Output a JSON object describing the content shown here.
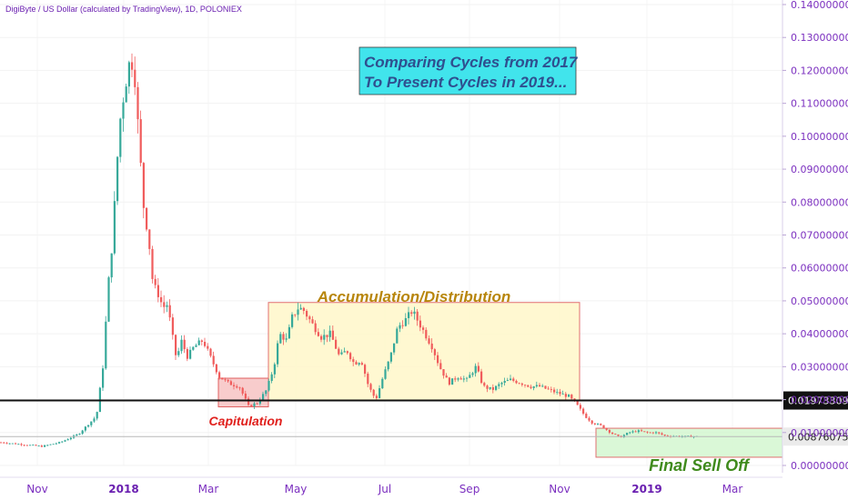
{
  "header": "DigiByte / US Dollar (calculated by TradingView), 1D, POLONIEX",
  "chart_data": {
    "type": "candlestick",
    "title": "",
    "xlabel": "",
    "ylabel": "",
    "ylim": [
      0.0,
      0.14
    ],
    "y_ticks": [
      "0.14000000",
      "0.13000000",
      "0.12000000",
      "0.11000000",
      "0.10000000",
      "0.09000000",
      "0.08000000",
      "0.07000000",
      "0.06000000",
      "0.05000000",
      "0.04000000",
      "0.03000000",
      "0.02000000",
      "0.01000000",
      "0.00000000"
    ],
    "x_ticks": [
      {
        "label": "Nov",
        "bold": false
      },
      {
        "label": "2018",
        "bold": true
      },
      {
        "label": "Mar",
        "bold": false
      },
      {
        "label": "May",
        "bold": false
      },
      {
        "label": "Jul",
        "bold": false
      },
      {
        "label": "Sep",
        "bold": false
      },
      {
        "label": "Nov",
        "bold": false
      },
      {
        "label": "2019",
        "bold": true
      },
      {
        "label": "Mar",
        "bold": false
      }
    ],
    "price_path": [
      [
        0,
        0.007
      ],
      [
        45,
        0.0058
      ],
      [
        65,
        0.007
      ],
      [
        85,
        0.0095
      ],
      [
        105,
        0.015
      ],
      [
        112,
        0.03
      ],
      [
        118,
        0.055
      ],
      [
        123,
        0.07
      ],
      [
        127,
        0.09
      ],
      [
        131,
        0.105
      ],
      [
        136,
        0.115
      ],
      [
        141,
        0.122
      ],
      [
        146,
        0.123
      ],
      [
        149,
        0.11
      ],
      [
        152,
        0.097
      ],
      [
        157,
        0.078
      ],
      [
        162,
        0.07
      ],
      [
        167,
        0.055
      ],
      [
        173,
        0.052
      ],
      [
        178,
        0.048
      ],
      [
        183,
        0.049
      ],
      [
        188,
        0.04
      ],
      [
        193,
        0.032
      ],
      [
        198,
        0.038
      ],
      [
        205,
        0.033
      ],
      [
        212,
        0.036
      ],
      [
        222,
        0.038
      ],
      [
        230,
        0.033
      ],
      [
        240,
        0.027
      ],
      [
        250,
        0.025
      ],
      [
        262,
        0.024
      ],
      [
        272,
        0.018
      ],
      [
        282,
        0.019
      ],
      [
        292,
        0.023
      ],
      [
        300,
        0.03
      ],
      [
        306,
        0.04
      ],
      [
        314,
        0.038
      ],
      [
        320,
        0.045
      ],
      [
        327,
        0.048
      ],
      [
        333,
        0.047
      ],
      [
        342,
        0.043
      ],
      [
        352,
        0.039
      ],
      [
        362,
        0.04
      ],
      [
        372,
        0.033
      ],
      [
        380,
        0.035
      ],
      [
        388,
        0.031
      ],
      [
        396,
        0.032
      ],
      [
        404,
        0.024
      ],
      [
        412,
        0.02
      ],
      [
        420,
        0.027
      ],
      [
        428,
        0.033
      ],
      [
        436,
        0.042
      ],
      [
        444,
        0.044
      ],
      [
        452,
        0.047
      ],
      [
        460,
        0.043
      ],
      [
        466,
        0.04
      ],
      [
        474,
        0.036
      ],
      [
        482,
        0.03
      ],
      [
        492,
        0.025
      ],
      [
        502,
        0.027
      ],
      [
        512,
        0.026
      ],
      [
        522,
        0.03
      ],
      [
        530,
        0.024
      ],
      [
        540,
        0.023
      ],
      [
        550,
        0.025
      ],
      [
        560,
        0.026
      ],
      [
        572,
        0.025
      ],
      [
        582,
        0.024
      ],
      [
        592,
        0.024
      ],
      [
        602,
        0.023
      ],
      [
        612,
        0.022
      ],
      [
        624,
        0.021
      ],
      [
        634,
        0.018
      ],
      [
        642,
        0.015
      ],
      [
        650,
        0.013
      ],
      [
        660,
        0.012
      ],
      [
        670,
        0.01
      ],
      [
        680,
        0.0085
      ],
      [
        690,
        0.01
      ],
      [
        700,
        0.0105
      ],
      [
        710,
        0.01
      ],
      [
        720,
        0.01
      ],
      [
        730,
        0.009
      ],
      [
        740,
        0.0089
      ],
      [
        750,
        0.0088
      ],
      [
        765,
        0.0088
      ]
    ],
    "horizontal_lines": [
      {
        "value": 0.01973309,
        "label": "0.01973309",
        "style": "black"
      },
      {
        "value": 0.00876075,
        "label": "0.00876075",
        "style": "gray"
      }
    ],
    "zones": [
      {
        "name": "Capitulation",
        "x0": 240,
        "x1": 295,
        "y0": 0.0178,
        "y1": 0.0265,
        "fill": "#f7c3c3",
        "stroke": "#e06060",
        "label_color": "#e0201c"
      },
      {
        "name": "Accumulation/Distribution",
        "x0": 295,
        "x1": 637,
        "y0": 0.0197,
        "y1": 0.0495,
        "fill": "#fff7c9",
        "stroke": "#e07070",
        "label_color": "#b8860b"
      },
      {
        "name": "Final Sell Off",
        "x0": 655,
        "x1": 860,
        "y0": 0.0025,
        "y1": 0.0113,
        "fill": "#d4f7d0",
        "stroke": "#e07070",
        "label_color": "#3f8a1c"
      }
    ],
    "colors": {
      "up": "#37a99a",
      "down": "#f05c5c",
      "accent": "#7b2fbf"
    }
  },
  "annotation": {
    "line1": "Comparing Cycles from 2017",
    "line2": "To Present Cycles in 2019...",
    "bg": "#41e4ec",
    "text_color": "#2f4f8f"
  }
}
